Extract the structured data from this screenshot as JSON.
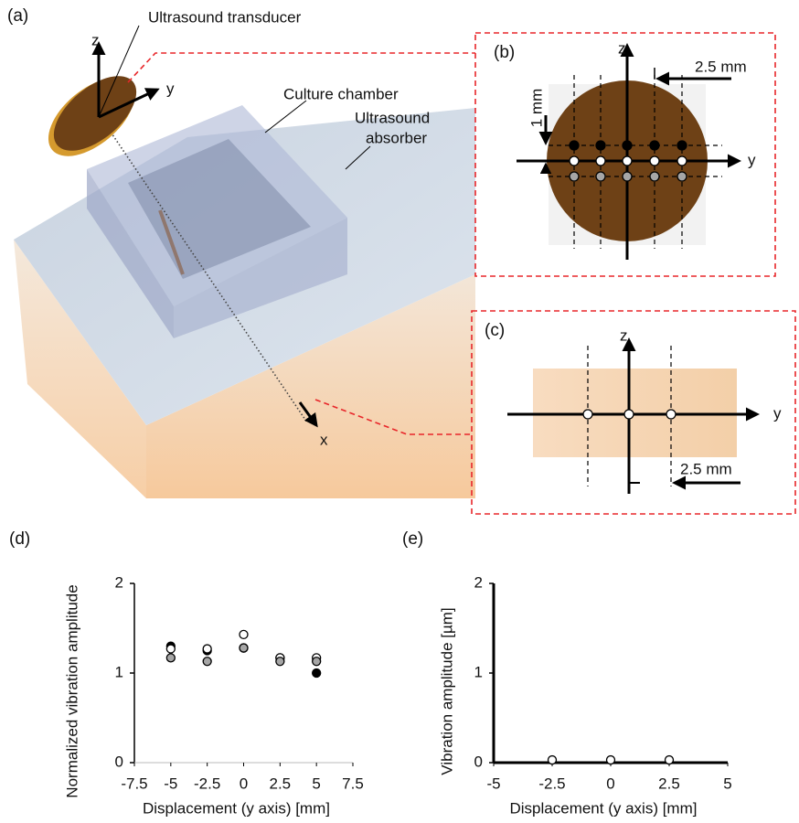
{
  "figure": {
    "panel_labels": [
      "(a)",
      "(b)",
      "(c)",
      "(d)",
      "(e)"
    ],
    "a": {
      "transducer": "Ultrasound transducer",
      "chamber": "Culture chamber",
      "absorber": [
        "Ultrasound",
        "absorber"
      ],
      "axes": [
        "z",
        "y",
        "x"
      ]
    },
    "b": {
      "axes": [
        "z",
        "y"
      ],
      "spacing": "2.5 mm",
      "offset": "1 mm"
    },
    "c": {
      "axes": [
        "z",
        "y"
      ],
      "spacing": "2.5 mm"
    }
  },
  "chart_data": [
    {
      "type": "scatter",
      "x_label": "Displacement (y axis) [mm]",
      "y_label": "Normalized vibration amplitude",
      "x": [
        -5,
        -2.5,
        0,
        2.5,
        5
      ],
      "edgecolor": "#000000",
      "series": [
        {
          "color": "#000000",
          "values": [
            1.3,
            1.25,
            1.28,
            1.17,
            1.0
          ]
        },
        {
          "color": "#ffffff",
          "values": [
            1.27,
            1.27,
            1.43,
            1.17,
            1.17
          ]
        },
        {
          "color": "#a6a6a6",
          "values": [
            1.17,
            1.13,
            1.28,
            1.13,
            1.13
          ]
        }
      ],
      "xlim": [
        -7.5,
        7.5
      ],
      "xticks": [
        -7.5,
        -5,
        -2.5,
        0,
        2.5,
        5,
        7.5
      ],
      "ylim": [
        0,
        2
      ],
      "yticks": [
        0,
        1,
        2
      ]
    },
    {
      "type": "scatter",
      "x_label": "Displacement (y axis) [mm]",
      "y_label": "Vibration amplitude [µm]",
      "x": [
        -2.5,
        0,
        2.5
      ],
      "edgecolor": "#000000",
      "series": [
        {
          "color": "#ffffff",
          "values": [
            0.03,
            0.03,
            0.03
          ]
        }
      ],
      "xlim": [
        -5,
        5
      ],
      "xticks": [
        -5,
        -2.5,
        0,
        2.5,
        5
      ],
      "ylim": [
        0,
        2
      ],
      "yticks": [
        0,
        1,
        2
      ]
    }
  ]
}
